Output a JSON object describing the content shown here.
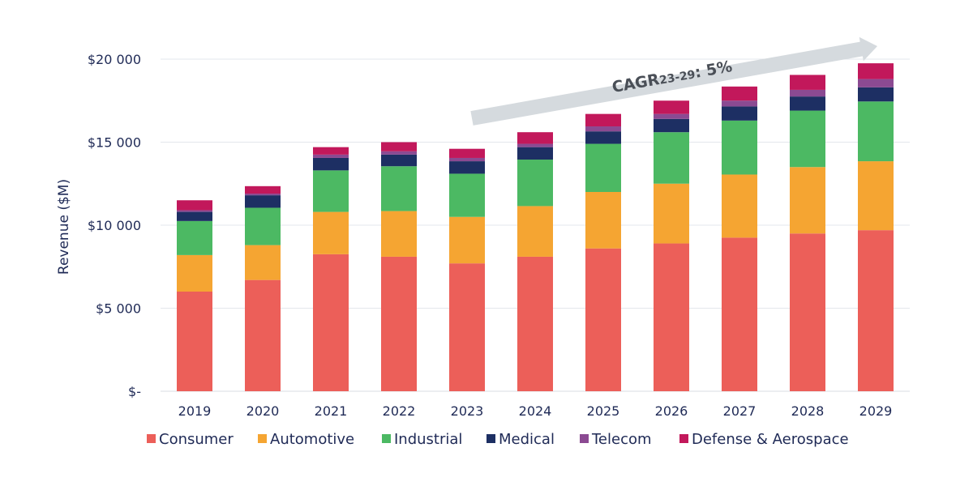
{
  "chart_data": {
    "type": "bar",
    "stacked": true,
    "categories": [
      "2019",
      "2020",
      "2021",
      "2022",
      "2023",
      "2024",
      "2025",
      "2026",
      "2027",
      "2028",
      "2029"
    ],
    "series": [
      {
        "name": "Consumer",
        "color": "#ec5f59",
        "values": [
          6000,
          6700,
          8250,
          8100,
          7700,
          8100,
          8600,
          8900,
          9250,
          9500,
          9700
        ]
      },
      {
        "name": "Automotive",
        "color": "#f5a532",
        "values": [
          2200,
          2100,
          2550,
          2750,
          2800,
          3050,
          3400,
          3600,
          3800,
          4000,
          4150
        ]
      },
      {
        "name": "Industrial",
        "color": "#4cb963",
        "values": [
          2050,
          2250,
          2500,
          2700,
          2600,
          2800,
          2900,
          3100,
          3250,
          3400,
          3600
        ]
      },
      {
        "name": "Medical",
        "color": "#1d2f63",
        "values": [
          550,
          750,
          750,
          700,
          750,
          750,
          750,
          800,
          850,
          850,
          850
        ]
      },
      {
        "name": "Telecom",
        "color": "#8b4a92",
        "values": [
          100,
          100,
          200,
          200,
          200,
          200,
          300,
          300,
          350,
          400,
          500
        ]
      },
      {
        "name": "Defense & Aerospace",
        "color": "#c2185b",
        "values": [
          600,
          450,
          450,
          550,
          550,
          700,
          750,
          800,
          850,
          900,
          950
        ]
      }
    ],
    "yaxis": {
      "label": "Revenue ($M)",
      "min": 0,
      "max": 20000,
      "ticks": [
        0,
        5000,
        10000,
        15000,
        20000
      ],
      "tick_labels": [
        "$-",
        "$5 000",
        "$10 000",
        "$15 000",
        "$20 000"
      ]
    },
    "grid": true,
    "legend": "bottom",
    "annotation": {
      "text": "CAGR",
      "subscript": "23-29",
      "suffix": ": 5%",
      "arrow_color": "#d5dade"
    }
  }
}
